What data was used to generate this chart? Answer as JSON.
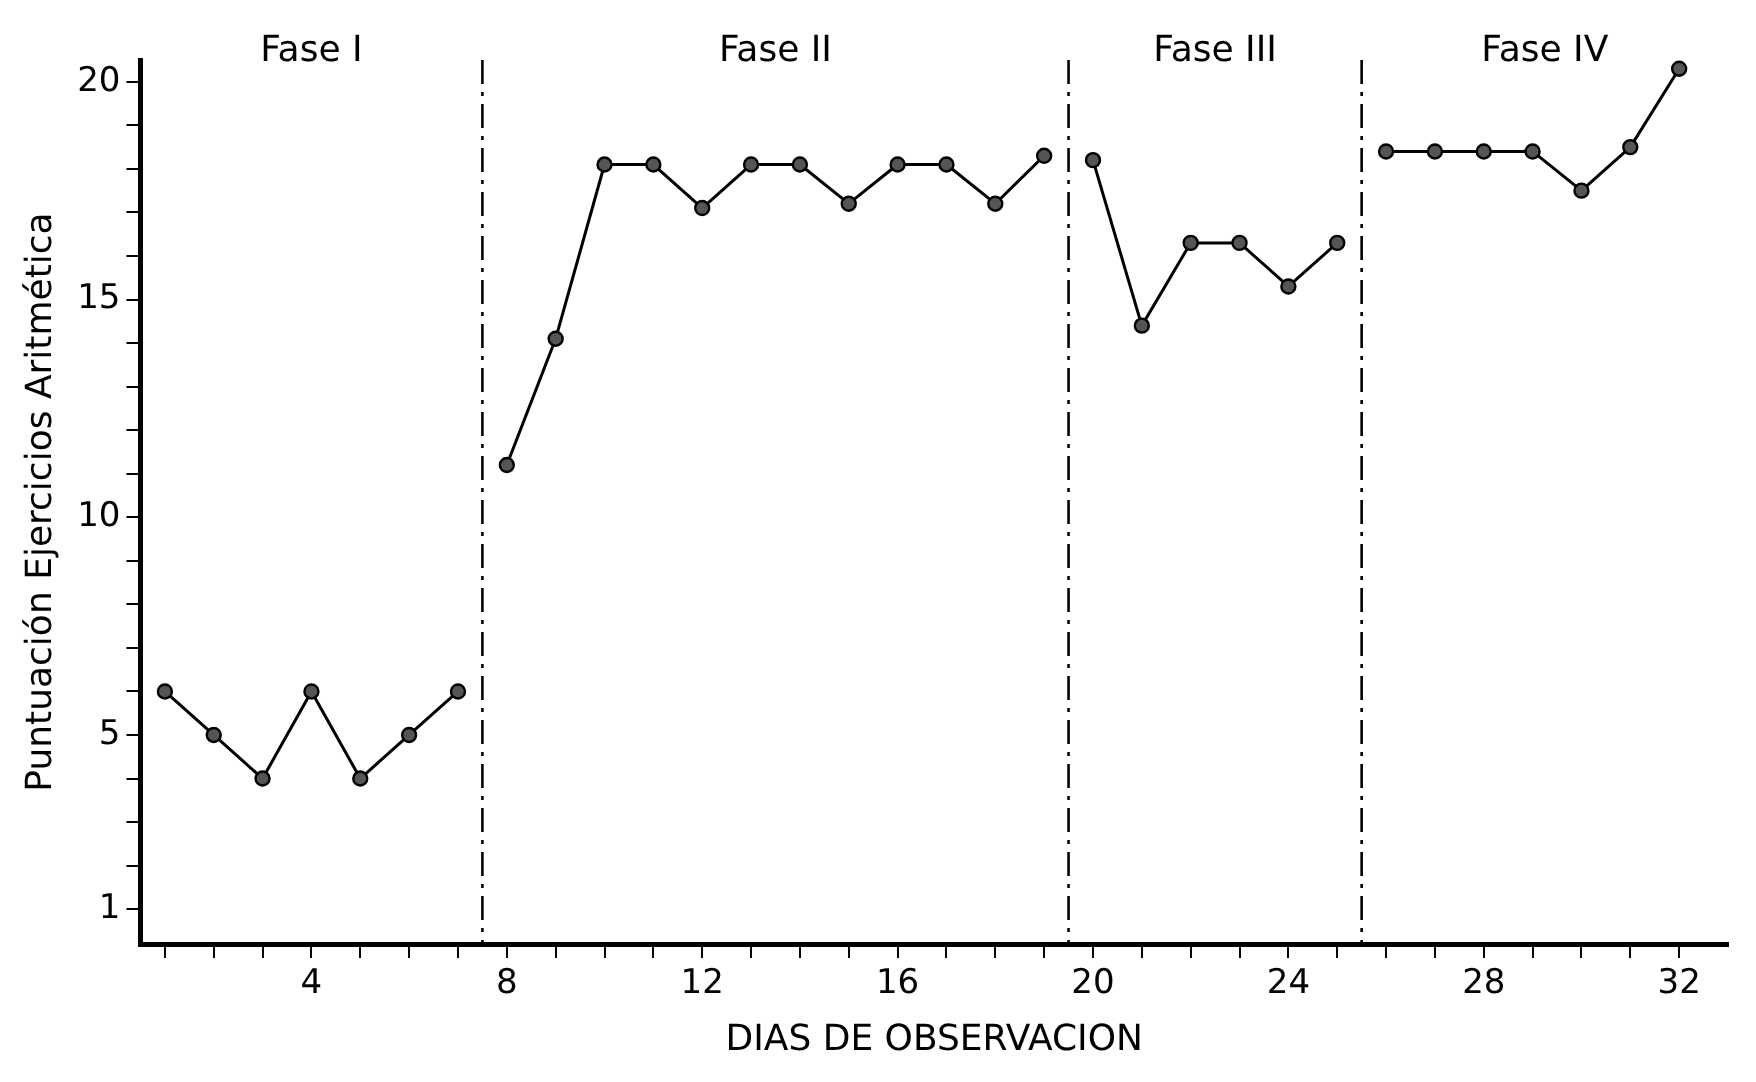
{
  "chart_data": {
    "type": "line",
    "xlabel": "DIAS DE OBSERVACION",
    "ylabel": "Puntuación Ejercicios Aritmética",
    "series": [
      {
        "color": "#000000",
        "x": [
          1,
          2,
          3,
          4,
          5,
          6,
          7
        ],
        "values": [
          6,
          5,
          4,
          6,
          4,
          5,
          6
        ]
      },
      {
        "color": "#000000",
        "x": [
          8,
          9,
          10,
          11,
          12,
          13,
          14,
          15,
          16,
          17,
          18,
          19
        ],
        "values": [
          11.2,
          14.1,
          18.1,
          18.1,
          17.1,
          18.1,
          18.1,
          17.2,
          18.1,
          18.1,
          17.2,
          18.3
        ]
      },
      {
        "color": "#000000",
        "x": [
          20,
          21,
          22,
          23,
          24,
          25
        ],
        "values": [
          18.2,
          14.4,
          16.3,
          16.3,
          15.3,
          16.3
        ]
      },
      {
        "color": "#000000",
        "x": [
          26,
          27,
          28,
          29,
          30,
          31,
          32
        ],
        "values": [
          18.4,
          18.4,
          18.4,
          18.4,
          17.5,
          18.5,
          20.3
        ]
      }
    ],
    "xlim": [
      0.5,
      33
    ],
    "xticks": [
      {
        "value": 1,
        "label": null
      },
      {
        "value": 2,
        "label": null
      },
      {
        "value": 3,
        "label": null
      },
      4,
      {
        "value": 5,
        "label": null
      },
      {
        "value": 6,
        "label": null
      },
      {
        "value": 7,
        "label": null
      },
      8,
      {
        "value": 9,
        "label": null
      },
      {
        "value": 10,
        "label": null
      },
      {
        "value": 11,
        "label": null
      },
      12,
      {
        "value": 13,
        "label": null
      },
      {
        "value": 14,
        "label": null
      },
      {
        "value": 15,
        "label": null
      },
      16,
      {
        "value": 17,
        "label": null
      },
      {
        "value": 18,
        "label": null
      },
      {
        "value": 19,
        "label": null
      },
      20,
      {
        "value": 21,
        "label": null
      },
      {
        "value": 22,
        "label": null
      },
      {
        "value": 23,
        "label": null
      },
      24,
      {
        "value": 25,
        "label": null
      },
      {
        "value": 26,
        "label": null
      },
      {
        "value": 27,
        "label": null
      },
      28,
      {
        "value": 29,
        "label": null
      },
      {
        "value": 30,
        "label": null
      },
      {
        "value": 31,
        "label": null
      },
      32
    ],
    "ylim": [
      0.2,
      20.5
    ],
    "yticks": [
      1,
      {
        "value": 2,
        "label": null
      },
      {
        "value": 3,
        "label": null
      },
      {
        "value": 4,
        "label": null
      },
      5,
      {
        "value": 6,
        "label": null
      },
      {
        "value": 7,
        "label": null
      },
      {
        "value": 8,
        "label": null
      },
      {
        "value": 9,
        "label": null
      },
      10,
      {
        "value": 11,
        "label": null
      },
      {
        "value": 12,
        "label": null
      },
      {
        "value": 13,
        "label": null
      },
      {
        "value": 14,
        "label": null
      },
      15,
      {
        "value": 16,
        "label": null
      },
      {
        "value": 17,
        "label": null
      },
      {
        "value": 18,
        "label": null
      },
      {
        "value": 19,
        "label": null
      },
      20
    ],
    "ref_lines": [
      {
        "axis": "x",
        "value": 7.5,
        "line_style": "dashed",
        "color": "#000000"
      },
      {
        "axis": "x",
        "value": 19.5,
        "line_style": "dashed",
        "color": "#000000"
      },
      {
        "axis": "x",
        "value": 25.5,
        "line_style": "dashed",
        "color": "#000000"
      }
    ],
    "annotations": [
      "Fase I",
      "Fase II",
      "Fase III",
      "Fase IV"
    ],
    "grid": false,
    "legend": false,
    "marker": "circle",
    "line_style": "solid"
  }
}
